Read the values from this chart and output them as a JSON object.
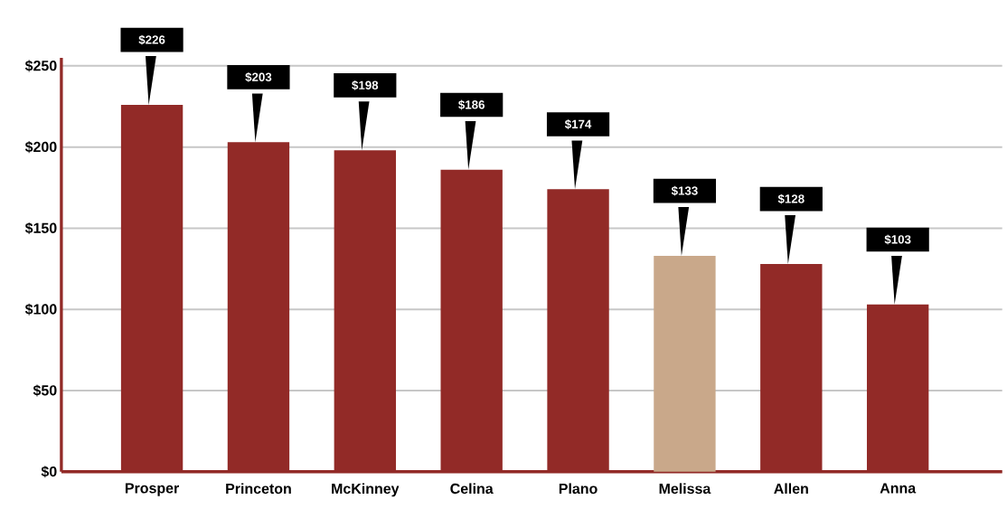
{
  "chart_data": {
    "type": "bar",
    "categories": [
      "Prosper",
      "Princeton",
      "McKinney",
      "Celina",
      "Plano",
      "Melissa",
      "Allen",
      "Anna"
    ],
    "values": [
      226,
      203,
      198,
      186,
      174,
      133,
      128,
      103
    ],
    "colors": [
      "#922a27",
      "#922a27",
      "#922a27",
      "#922a27",
      "#922a27",
      "#c9a88a",
      "#922a27",
      "#922a27"
    ],
    "value_labels": [
      "$226",
      "$203",
      "$198",
      "$186",
      "$174",
      "$133",
      "$128",
      "$103"
    ],
    "ylim": [
      0,
      255
    ],
    "yticks": [
      {
        "value": 0,
        "label": "$0"
      },
      {
        "value": 50,
        "label": "$50"
      },
      {
        "value": 100,
        "label": "$100"
      },
      {
        "value": 150,
        "label": "$150"
      },
      {
        "value": 200,
        "label": "$200"
      },
      {
        "value": 250,
        "label": "$250"
      }
    ],
    "grid": "y"
  }
}
